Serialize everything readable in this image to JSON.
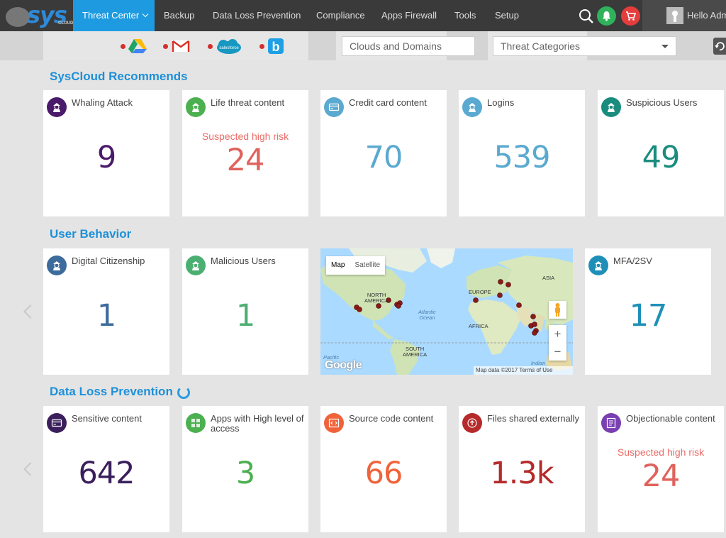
{
  "app": {
    "logo_text": "sys",
    "logo_subtext": "CLOUD"
  },
  "nav": {
    "items": [
      {
        "label": "Threat Center"
      },
      {
        "label": "Backup"
      },
      {
        "label": "Data Loss Prevention"
      },
      {
        "label": "Compliance"
      },
      {
        "label": "Apps Firewall"
      },
      {
        "label": "Tools"
      },
      {
        "label": "Setup"
      }
    ],
    "greeting": "Hello Adm"
  },
  "filters": {
    "providers": [
      "google-drive-icon",
      "gmail-icon",
      "salesforce-icon",
      "box-icon"
    ],
    "salesforce_text": "salesforce",
    "box_text": "b",
    "clouds_placeholder": "Clouds and Domains",
    "threat_placeholder": "Threat Categories"
  },
  "sections": {
    "recommends": "SysCloud Recommends",
    "behavior": "User Behavior",
    "dlp": "Data Loss Prevention"
  },
  "recommends_cards": [
    {
      "title": "Whaling Attack",
      "value": "9",
      "subtitle": "",
      "color": "#4a1a6b",
      "icon_bg": "#4a1a6b",
      "icon": "hacker-icon"
    },
    {
      "title": "Life threat content",
      "value": "24",
      "subtitle": "Suspected high risk",
      "color": "#e0625c",
      "icon_bg": "#4caf50",
      "icon": "hacker-icon"
    },
    {
      "title": "Credit card content",
      "value": "70",
      "subtitle": "",
      "color": "#5aa9d0",
      "icon_bg": "#5aa9d0",
      "icon": "credit-card-icon"
    },
    {
      "title": "Logins",
      "value": "539",
      "subtitle": "",
      "color": "#5aa9d0",
      "icon_bg": "#5aa9d0",
      "icon": "hacker-icon"
    },
    {
      "title": "Suspicious Users",
      "value": "49",
      "subtitle": "",
      "color": "#1a8c7e",
      "icon_bg": "#1a8c7e",
      "icon": "hacker-icon"
    }
  ],
  "behavior_cards": [
    {
      "title": "Digital Citizenship",
      "value": "1",
      "color": "#3c6b9c",
      "icon_bg": "#3c6b9c",
      "icon": "hacker-icon"
    },
    {
      "title": "Malicious Users",
      "value": "1",
      "color": "#4caf72",
      "icon_bg": "#4caf72",
      "icon": "hacker-icon"
    },
    {
      "title": "MFA/2SV",
      "value": "17",
      "color": "#1e90b8",
      "icon_bg": "#1e90b8",
      "icon": "hacker-icon"
    }
  ],
  "map": {
    "btn_map": "Map",
    "btn_satellite": "Satellite",
    "labels": {
      "north_america": "NORTH\nAMERICA",
      "europe": "EUROPE",
      "asia": "ASIA",
      "africa": "AFRICA",
      "south_america": "SOUTH\nAMERICA",
      "atlantic": "Atlantic\nOcean",
      "indian": "Indian\nOcean",
      "pacific": "Pacific"
    },
    "google": "Google",
    "attribution": "Map data ©2017   Terms of Use",
    "zoom_in": "+",
    "zoom_out": "−"
  },
  "dlp_cards": [
    {
      "title": "Sensitive content",
      "value": "642",
      "subtitle": "",
      "color": "#3a1f5c",
      "icon_bg": "#3a1f5c",
      "icon": "credit-card-icon"
    },
    {
      "title": "Apps with High level of access",
      "value": "3",
      "subtitle": "",
      "color": "#4caf50",
      "icon_bg": "#4caf50",
      "icon": "apps-icon"
    },
    {
      "title": "Source code content",
      "value": "66",
      "subtitle": "",
      "color": "#f0633a",
      "icon_bg": "#f0633a",
      "icon": "code-icon"
    },
    {
      "title": "Files shared externally",
      "value": "1.3k",
      "subtitle": "",
      "color": "#b52a2a",
      "icon_bg": "#b52a2a",
      "icon": "share-icon"
    },
    {
      "title": "Objectionable content",
      "value": "24",
      "subtitle": "Suspected high risk",
      "color": "#e0625c",
      "icon_bg": "#7a3fb0",
      "icon": "flag-icon"
    }
  ]
}
